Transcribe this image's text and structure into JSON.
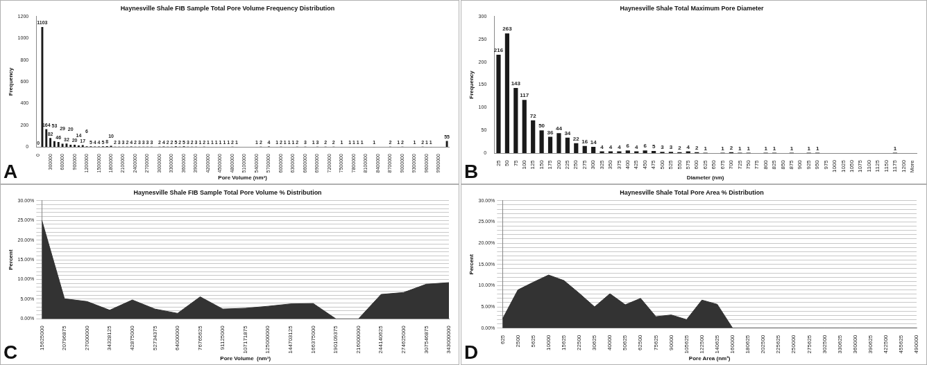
{
  "chart_data": [
    {
      "type": "bar",
      "title": "Haynesville Shale FIB Sample Total Pore Volume Frequency Distribution",
      "xlabel": "Pore Volume (nm³)",
      "ylabel": "Frequency",
      "annotations": [
        "A"
      ],
      "color": "#1a1a1a",
      "data_labels": true,
      "ylim": [
        0,
        1200
      ],
      "yticks": [
        0,
        200,
        400,
        600,
        800,
        1000,
        1200
      ],
      "categories": [
        "0",
        null,
        null,
        "300000",
        null,
        null,
        "600000",
        null,
        null,
        "900000",
        null,
        null,
        "1200000",
        null,
        null,
        "1500000",
        null,
        null,
        "1800000",
        null,
        null,
        "2100000",
        null,
        null,
        "2400000",
        null,
        null,
        "2700000",
        null,
        null,
        "3000000",
        null,
        null,
        "3300000",
        null,
        null,
        "3600000",
        null,
        null,
        "3900000",
        null,
        null,
        "4200000",
        null,
        null,
        "4500000",
        null,
        null,
        "4800000",
        null,
        null,
        "5100000",
        null,
        null,
        "5400000",
        null,
        null,
        "5700000",
        null,
        null,
        "6000000",
        null,
        null,
        "6300000",
        null,
        null,
        "6600000",
        null,
        null,
        "6900000",
        null,
        null,
        "7200000",
        null,
        null,
        "7500000",
        null,
        null,
        "7800000",
        null,
        null,
        "8100000",
        null,
        null,
        "8400000",
        null,
        null,
        "8700000",
        null,
        null,
        "9000000",
        null,
        null,
        "9300000",
        null,
        null,
        "9600000",
        null,
        null,
        "9900000",
        null,
        null
      ],
      "values": [
        0,
        1103,
        164,
        82,
        53,
        46,
        29,
        32,
        20,
        20,
        14,
        17,
        6,
        5,
        4,
        4,
        5,
        8,
        10,
        2,
        3,
        3,
        2,
        4,
        2,
        3,
        3,
        3,
        3,
        null,
        2,
        4,
        2,
        2,
        5,
        2,
        5,
        3,
        2,
        3,
        1,
        2,
        1,
        1,
        1,
        1,
        1,
        1,
        2,
        1,
        null,
        null,
        null,
        null,
        1,
        2,
        null,
        4,
        null,
        1,
        2,
        1,
        1,
        1,
        2,
        null,
        3,
        null,
        1,
        3,
        null,
        2,
        null,
        2,
        null,
        1,
        null,
        1,
        1,
        1,
        1,
        null,
        null,
        1,
        null,
        null,
        null,
        2,
        null,
        1,
        2,
        null,
        null,
        1,
        null,
        2,
        1,
        1,
        null,
        null,
        null,
        55
      ]
    },
    {
      "type": "bar",
      "title": "Haynesville Shale Total Maximum Pore Diameter",
      "xlabel": "Diameter (nm)",
      "ylabel": "Frequency",
      "annotations": [
        "B"
      ],
      "color": "#1a1a1a",
      "data_labels": true,
      "ylim": [
        0,
        300
      ],
      "yticks": [
        0,
        50,
        100,
        150,
        200,
        250,
        300
      ],
      "categories": [
        "25",
        "50",
        "75",
        "100",
        "125",
        "150",
        "175",
        "200",
        "225",
        "250",
        "275",
        "300",
        "325",
        "350",
        "375",
        "400",
        "425",
        "450",
        "475",
        "500",
        "525",
        "550",
        "575",
        "600",
        "625",
        "650",
        "675",
        "700",
        "725",
        "750",
        "775",
        "800",
        "825",
        "850",
        "875",
        "900",
        "925",
        "950",
        "975",
        "1000",
        "1025",
        "1050",
        "1075",
        "1100",
        "1125",
        "1150",
        "1175",
        "1200",
        "More"
      ],
      "values": [
        216,
        263,
        143,
        117,
        72,
        50,
        36,
        44,
        34,
        22,
        16,
        14,
        4,
        4,
        4,
        6,
        4,
        6,
        5,
        3,
        3,
        2,
        4,
        2,
        1,
        null,
        1,
        2,
        1,
        1,
        null,
        1,
        1,
        null,
        1,
        null,
        1,
        1,
        null,
        null,
        null,
        null,
        null,
        null,
        null,
        null,
        1,
        null,
        null
      ]
    },
    {
      "type": "area",
      "title": "Haynesville Shale FIB Sample Total Pore Volume % Distribution",
      "xlabel": "Pore Volume  (nm³)",
      "ylabel": "Percent",
      "annotations": [
        "C"
      ],
      "color": "#333333",
      "grid": "y",
      "ylim": [
        0,
        30
      ],
      "yticks": [
        {
          "value": 0,
          "label": "0.00%"
        },
        {
          "value": 1,
          "label": null
        },
        {
          "value": 2,
          "label": null
        },
        {
          "value": 3,
          "label": null
        },
        {
          "value": 4,
          "label": null
        },
        {
          "value": 5,
          "label": "5.00%"
        },
        {
          "value": 6,
          "label": null
        },
        {
          "value": 7,
          "label": null
        },
        {
          "value": 8,
          "label": null
        },
        {
          "value": 9,
          "label": null
        },
        {
          "value": 10,
          "label": "10.00%"
        },
        {
          "value": 11,
          "label": null
        },
        {
          "value": 12,
          "label": null
        },
        {
          "value": 13,
          "label": null
        },
        {
          "value": 14,
          "label": null
        },
        {
          "value": 15,
          "label": "15.00%"
        },
        {
          "value": 16,
          "label": null
        },
        {
          "value": 17,
          "label": null
        },
        {
          "value": 18,
          "label": null
        },
        {
          "value": 19,
          "label": null
        },
        {
          "value": 20,
          "label": "20.00%"
        },
        {
          "value": 21,
          "label": null
        },
        {
          "value": 22,
          "label": null
        },
        {
          "value": 23,
          "label": null
        },
        {
          "value": 24,
          "label": null
        },
        {
          "value": 25,
          "label": "25.00%"
        },
        {
          "value": 26,
          "label": null
        },
        {
          "value": 27,
          "label": null
        },
        {
          "value": 28,
          "label": null
        },
        {
          "value": 29,
          "label": null
        },
        {
          "value": 30,
          "label": "30.00%"
        }
      ],
      "categories": [
        "15625000",
        "20796875",
        "27000000",
        "34328125",
        "42875000",
        "52734375",
        "64000000",
        "76765625",
        "91125000",
        "107171875",
        "125000000",
        "144703125",
        "166375000",
        "190109375",
        "216000000",
        "244140625",
        "274625000",
        "307546875",
        "343000000"
      ],
      "values": [
        25,
        5.1,
        4.4,
        2.2,
        4.8,
        2.5,
        1.4,
        5.6,
        2.5,
        2.7,
        3.2,
        3.8,
        3.9,
        0,
        0,
        6.2,
        6.7,
        8.8,
        9.2
      ]
    },
    {
      "type": "area",
      "title": "Haynesville Shale Total Pore Area % Distribution",
      "xlabel": "Pore Area (nm²)",
      "ylabel": "Percent",
      "annotations": [
        "D"
      ],
      "color": "#333333",
      "grid": "y",
      "ylim": [
        0,
        30
      ],
      "yticks": [
        {
          "value": 0,
          "label": "0.00%"
        },
        {
          "value": 1,
          "label": null
        },
        {
          "value": 2,
          "label": null
        },
        {
          "value": 3,
          "label": null
        },
        {
          "value": 4,
          "label": null
        },
        {
          "value": 5,
          "label": "5.00%"
        },
        {
          "value": 6,
          "label": null
        },
        {
          "value": 7,
          "label": null
        },
        {
          "value": 8,
          "label": null
        },
        {
          "value": 9,
          "label": null
        },
        {
          "value": 10,
          "label": "10.00%"
        },
        {
          "value": 11,
          "label": null
        },
        {
          "value": 12,
          "label": null
        },
        {
          "value": 13,
          "label": null
        },
        {
          "value": 14,
          "label": null
        },
        {
          "value": 15,
          "label": "15.00%"
        },
        {
          "value": 16,
          "label": null
        },
        {
          "value": 17,
          "label": null
        },
        {
          "value": 18,
          "label": null
        },
        {
          "value": 19,
          "label": null
        },
        {
          "value": 20,
          "label": "20.00%"
        },
        {
          "value": 21,
          "label": null
        },
        {
          "value": 22,
          "label": null
        },
        {
          "value": 23,
          "label": null
        },
        {
          "value": 24,
          "label": null
        },
        {
          "value": 25,
          "label": "25.00%"
        },
        {
          "value": 26,
          "label": null
        },
        {
          "value": 27,
          "label": null
        },
        {
          "value": 28,
          "label": null
        },
        {
          "value": 29,
          "label": null
        },
        {
          "value": 30,
          "label": "30.00%"
        }
      ],
      "categories": [
        "625",
        "2500",
        "5625",
        "10000",
        "15625",
        "22500",
        "30625",
        "40000",
        "50625",
        "62500",
        "75625",
        "90000",
        "105625",
        "122500",
        "140625",
        "160000",
        "180625",
        "202500",
        "225625",
        "250000",
        "275625",
        "302500",
        "330625",
        "360000",
        "390625",
        "422500",
        "455625",
        "490000"
      ],
      "values": [
        2.2,
        9,
        10.8,
        12.5,
        11.2,
        8.2,
        5,
        8.1,
        5.5,
        7,
        2.7,
        3.1,
        2,
        6.6,
        5.6,
        0,
        0,
        0,
        0,
        0,
        0,
        0,
        0,
        0,
        0,
        0,
        0,
        0
      ]
    }
  ]
}
